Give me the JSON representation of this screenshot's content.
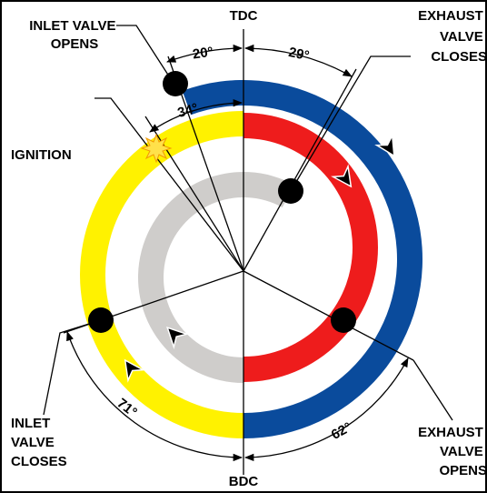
{
  "diagram": {
    "tdc": "TDC",
    "bdc": "BDC",
    "labels": {
      "inlet_valve_opens": [
        "INLET VALVE",
        "OPENS"
      ],
      "exhaust_valve_closes": [
        "EXHAUST",
        "VALVE",
        "CLOSES"
      ],
      "ignition": "IGNITION",
      "inlet_valve_closes": [
        "INLET",
        "VALVE",
        "CLOSES"
      ],
      "exhaust_valve_opens": [
        "EXHAUST",
        "VALVE",
        "OPENS"
      ]
    },
    "angles": {
      "inlet_opens": "20°",
      "exhaust_closes": "29°",
      "ignition": "34°",
      "inlet_closes": "71°",
      "exhaust_opens": "62°"
    }
  }
}
